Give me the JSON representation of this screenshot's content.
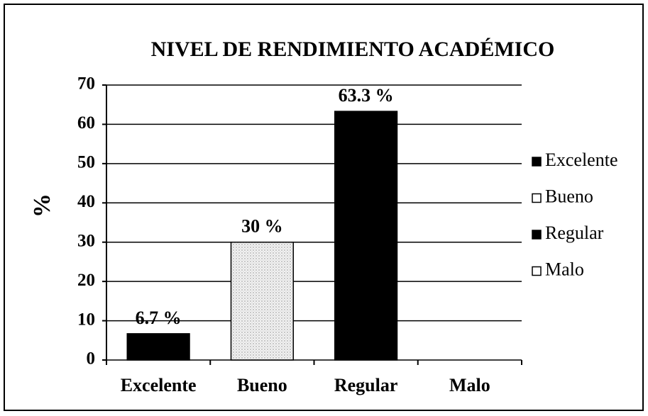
{
  "chart_data": {
    "type": "bar",
    "title": "NIVEL DE RENDIMIENTO ACADÉMICO",
    "y_label": "%",
    "categories": [
      "Excelente",
      "Bueno",
      "Regular",
      "Malo"
    ],
    "values": [
      6.7,
      30,
      63.3,
      0
    ],
    "value_labels": [
      "6.7 %",
      "30 %",
      "63.3 %",
      null
    ],
    "colors": [
      "#000000",
      "#e4e4e4",
      "#000000",
      "#ffffff"
    ],
    "ylim": [
      0,
      70
    ],
    "yticks": [
      0,
      10,
      20,
      30,
      40,
      50,
      60,
      70
    ],
    "grid": true,
    "legend": "right"
  }
}
